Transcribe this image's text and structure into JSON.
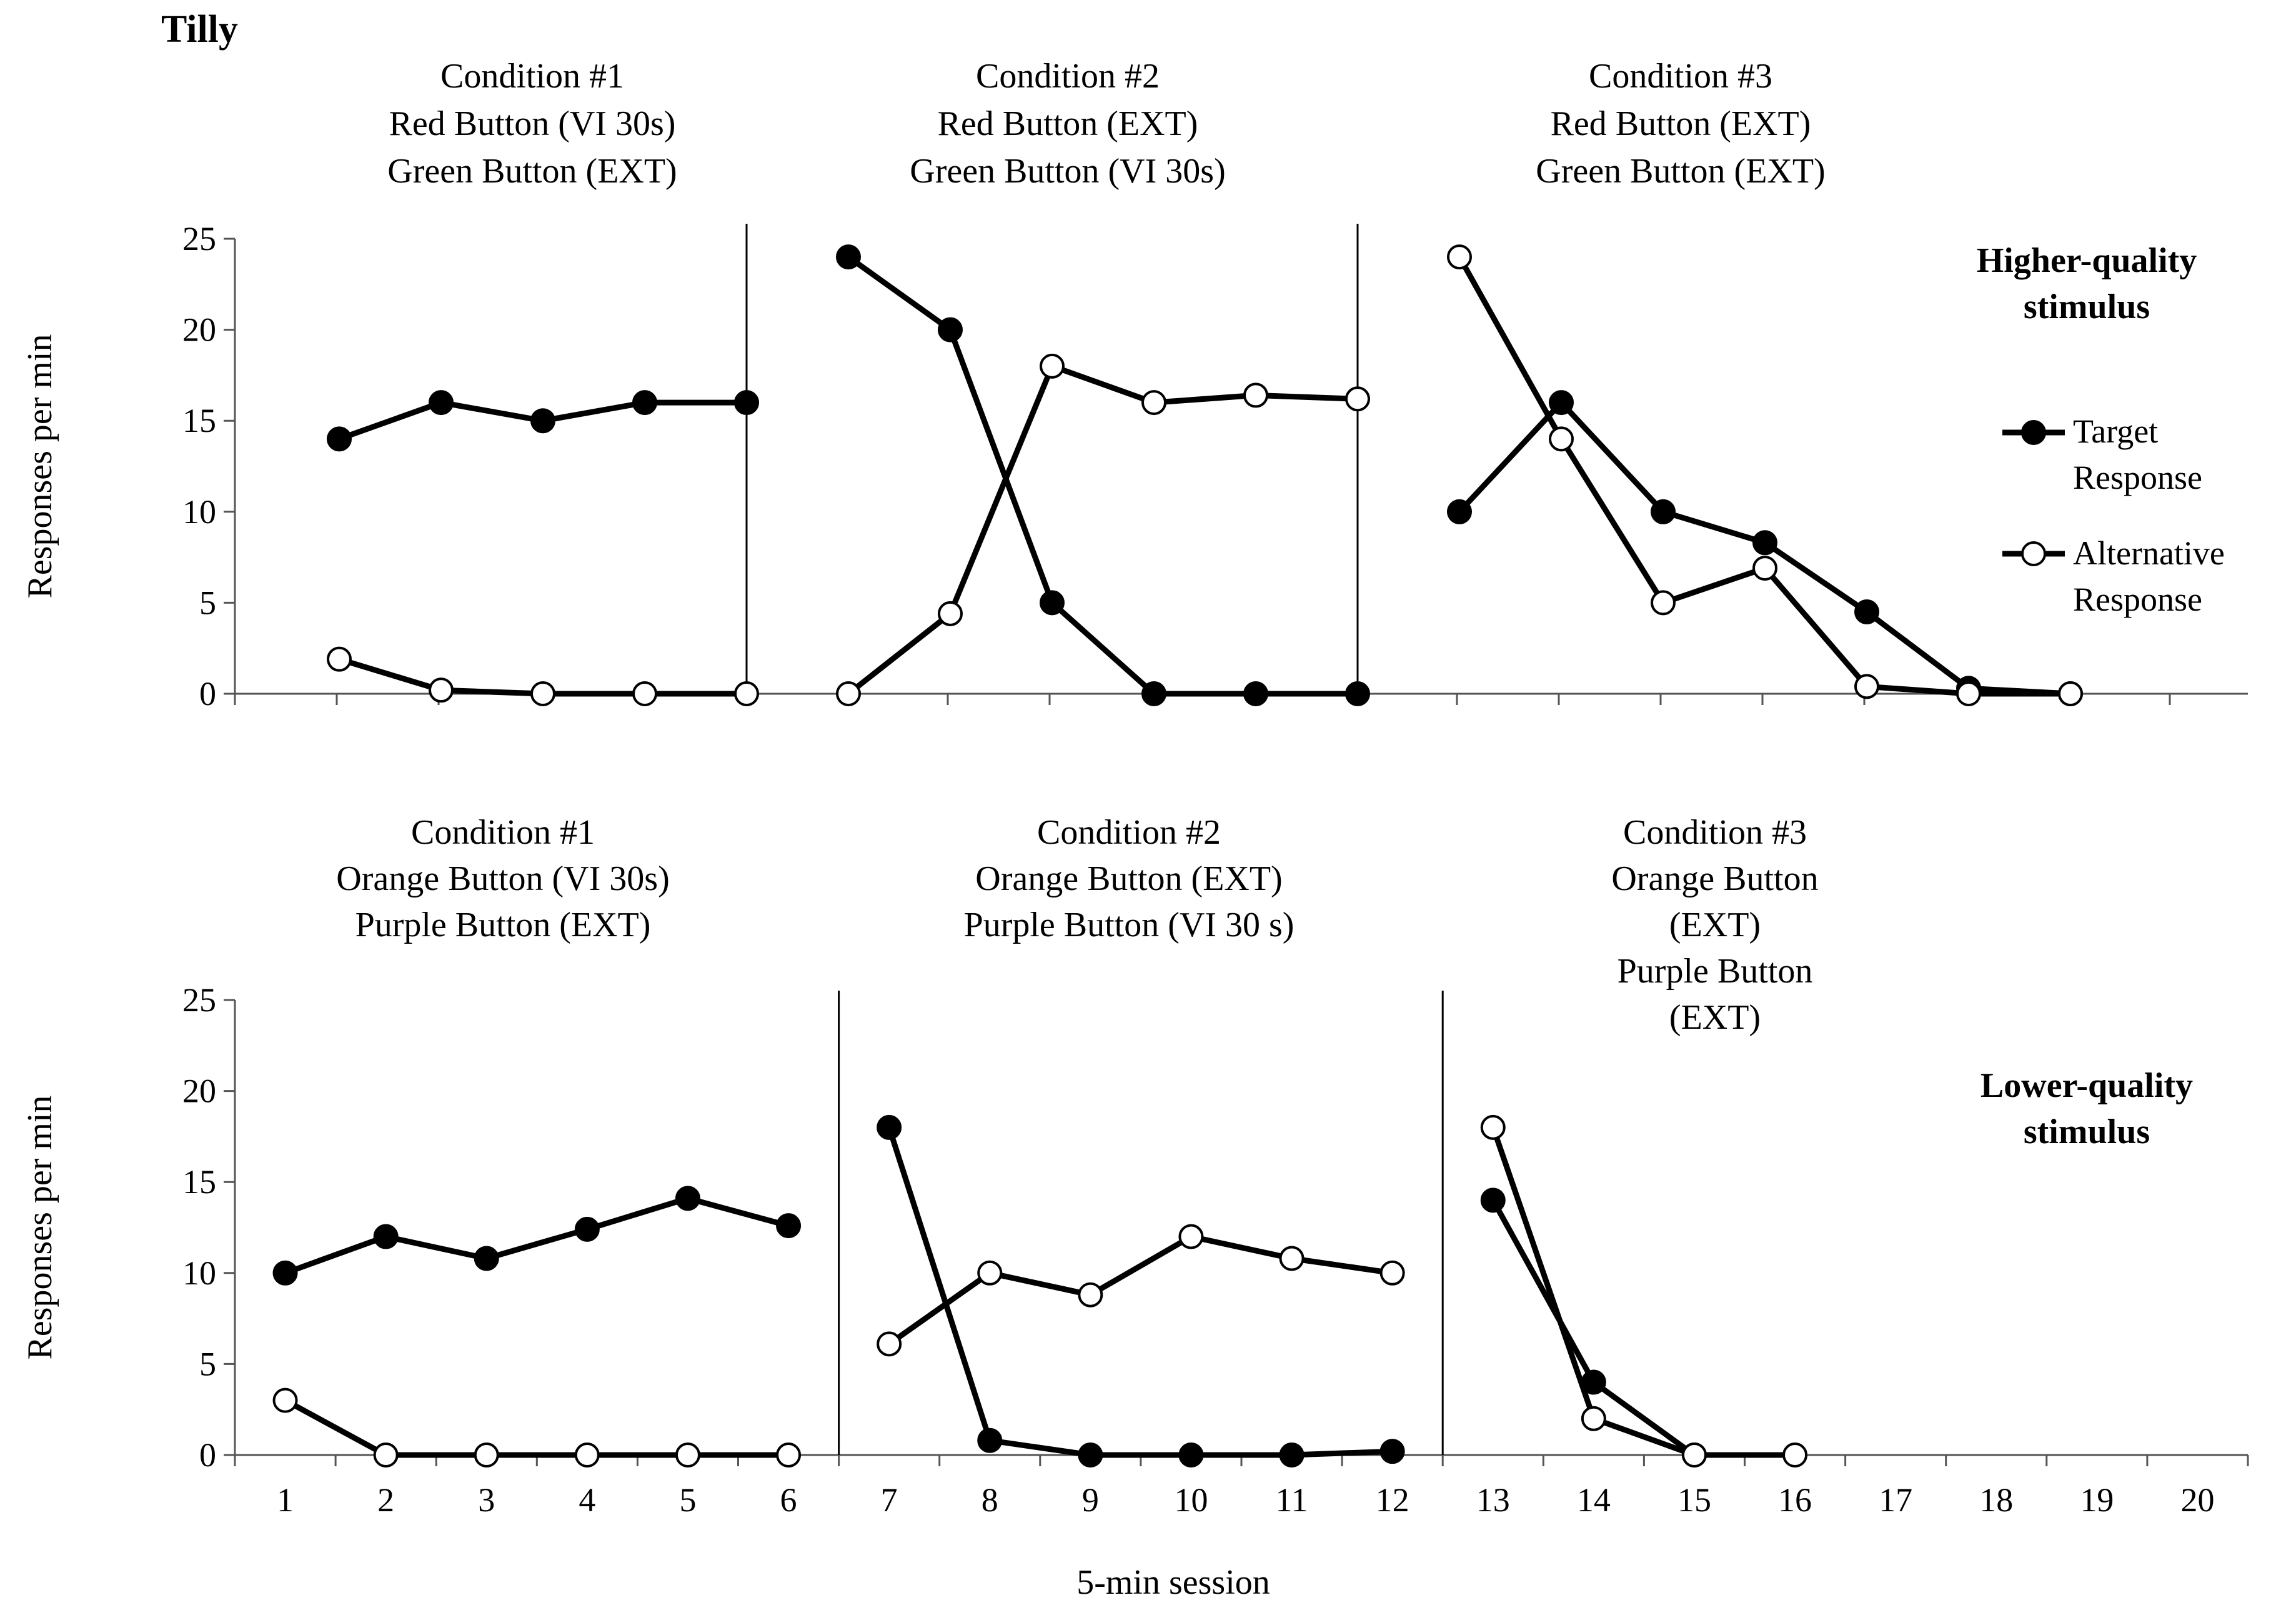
{
  "chart_data": {
    "type": "line",
    "subject": "Tilly",
    "xlabel": "5-min session",
    "x_ticks": [
      "1",
      "2",
      "3",
      "4",
      "5",
      "6",
      "7",
      "8",
      "9",
      "10",
      "11",
      "12",
      "13",
      "14",
      "15",
      "16",
      "17",
      "18",
      "19",
      "20"
    ],
    "legend": {
      "target": [
        "Target",
        "Response"
      ],
      "alternative": [
        "Alternative",
        "Response"
      ]
    },
    "colors": {
      "line": "#000000",
      "target_fill": "#000000",
      "alternative_fill": "#ffffff"
    },
    "panels": [
      {
        "panel_label": [
          "Higher-quality",
          "stimulus"
        ],
        "ylabel": "Responses per min",
        "ylim": [
          0,
          25
        ],
        "y_ticks": [
          "0",
          "5",
          "10",
          "15",
          "20",
          "25"
        ],
        "phase_change_after": [
          5.5,
          11.5
        ],
        "conditions": [
          {
            "lines": [
              "Condition #1",
              "Red Button (VI 30s)",
              "Green Button (EXT)"
            ]
          },
          {
            "lines": [
              "Condition #2",
              "Red Button (EXT)",
              "Green Button (VI 30s)"
            ]
          },
          {
            "lines": [
              "Condition #3",
              "Red Button (EXT)",
              "Green Button (EXT)"
            ]
          }
        ],
        "series": [
          {
            "name": "Target Response",
            "segments": [
              [
                [
                  1.5,
                  14
                ],
                [
                  2.5,
                  16
                ],
                [
                  3.5,
                  15
                ],
                [
                  4.5,
                  16
                ],
                [
                  5.5,
                  16
                ]
              ],
              [
                [
                  6.5,
                  24
                ],
                [
                  7.5,
                  20
                ],
                [
                  8.5,
                  5
                ],
                [
                  9.5,
                  0
                ],
                [
                  10.5,
                  0
                ],
                [
                  11.5,
                  0
                ]
              ],
              [
                [
                  12.5,
                  10
                ],
                [
                  13.5,
                  16
                ],
                [
                  14.5,
                  10
                ],
                [
                  15.5,
                  8.3
                ],
                [
                  16.5,
                  4.5
                ],
                [
                  17.5,
                  0.3
                ],
                [
                  18.5,
                  0
                ]
              ]
            ]
          },
          {
            "name": "Alternative Response",
            "segments": [
              [
                [
                  1.5,
                  1.9
                ],
                [
                  2.5,
                  0.2
                ],
                [
                  3.5,
                  0
                ],
                [
                  4.5,
                  0
                ],
                [
                  5.5,
                  0
                ]
              ],
              [
                [
                  6.5,
                  0
                ],
                [
                  7.5,
                  4.4
                ],
                [
                  8.5,
                  18
                ],
                [
                  9.5,
                  16
                ],
                [
                  10.5,
                  16.4
                ],
                [
                  11.5,
                  16.2
                ]
              ],
              [
                [
                  12.5,
                  24
                ],
                [
                  13.5,
                  14
                ],
                [
                  14.5,
                  5
                ],
                [
                  15.5,
                  6.9
                ],
                [
                  16.5,
                  0.4
                ],
                [
                  17.5,
                  0
                ],
                [
                  18.5,
                  0
                ]
              ]
            ]
          }
        ]
      },
      {
        "panel_label": [
          "Lower-quality",
          "stimulus"
        ],
        "ylabel": "Responses per min",
        "ylim": [
          0,
          25
        ],
        "y_ticks": [
          "0",
          "5",
          "10",
          "15",
          "20",
          "25"
        ],
        "phase_change_after": [
          6.5,
          12.5
        ],
        "conditions": [
          {
            "lines": [
              "Condition #1",
              "Orange Button (VI 30s)",
              "Purple Button (EXT)"
            ]
          },
          {
            "lines": [
              "Condition #2",
              "Orange Button (EXT)",
              "Purple Button (VI 30 s)"
            ]
          },
          {
            "lines": [
              "Condition #3",
              "Orange Button",
              "(EXT)",
              "Purple Button",
              "(EXT)"
            ]
          }
        ],
        "series": [
          {
            "name": "Target Response",
            "segments": [
              [
                [
                  1,
                  10
                ],
                [
                  2,
                  12
                ],
                [
                  3,
                  10.8
                ],
                [
                  4,
                  12.4
                ],
                [
                  5,
                  14.1
                ],
                [
                  6,
                  12.6
                ]
              ],
              [
                [
                  7,
                  18
                ],
                [
                  8,
                  0.8
                ],
                [
                  9,
                  0
                ],
                [
                  10,
                  0
                ],
                [
                  11,
                  0
                ],
                [
                  12,
                  0.2
                ]
              ],
              [
                [
                  13,
                  14
                ],
                [
                  14,
                  4
                ],
                [
                  15,
                  0
                ]
              ]
            ]
          },
          {
            "name": "Alternative Response",
            "segments": [
              [
                [
                  1,
                  3
                ],
                [
                  2,
                  0
                ],
                [
                  3,
                  0
                ],
                [
                  4,
                  0
                ],
                [
                  5,
                  0
                ],
                [
                  6,
                  0
                ]
              ],
              [
                [
                  7,
                  6.1
                ],
                [
                  8,
                  10
                ],
                [
                  9,
                  8.8
                ],
                [
                  10,
                  12
                ],
                [
                  11,
                  10.8
                ],
                [
                  12,
                  10
                ]
              ],
              [
                [
                  13,
                  18
                ],
                [
                  14,
                  2
                ],
                [
                  15,
                  0
                ],
                [
                  16,
                  0
                ]
              ]
            ]
          }
        ]
      }
    ]
  }
}
